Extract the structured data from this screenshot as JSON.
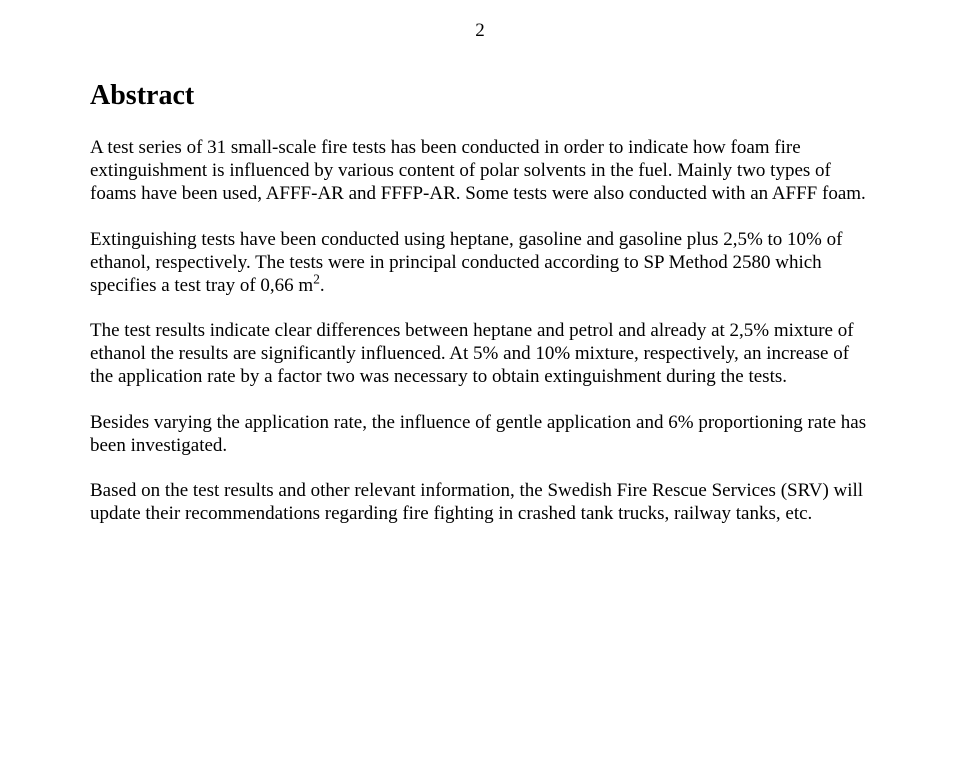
{
  "page_number": "2",
  "heading": "Abstract",
  "paragraphs": {
    "p1": "A test series of 31 small-scale fire tests has been conducted in order to indicate how foam fire extinguishment is influenced by various content of polar solvents in the fuel. Mainly two types of foams have been used, AFFF-AR and FFFP-AR. Some tests were also conducted with an AFFF foam.",
    "p2_before_sup": "Extinguishing tests have been conducted using heptane, gasoline and gasoline plus 2,5% to 10% of ethanol, respectively. The tests were in principal conducted according to SP Method 2580 which specifies a test tray of 0,66 m",
    "p2_sup": "2",
    "p2_after_sup": ".",
    "p3": "The test results indicate clear differences between heptane and petrol and already at 2,5% mixture of ethanol the results are significantly influenced. At 5% and 10% mixture, respectively, an increase of the application rate by a factor two was necessary to obtain extinguishment during the tests.",
    "p4": "Besides varying the application rate, the influence of gentle application and 6% proportioning rate has been investigated.",
    "p5": "Based on the test results and other relevant information, the Swedish Fire Rescue Services (SRV) will update their recommendations regarding fire fighting in crashed tank trucks, railway tanks, etc."
  }
}
